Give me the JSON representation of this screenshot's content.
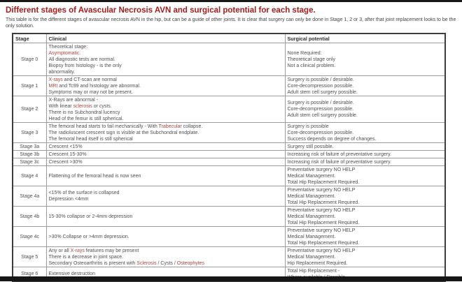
{
  "page": {
    "title": "Different stages of Avascular Necrosis AVN and surgical potential for each stage.",
    "subtitle": "This table is for the different stages of avascular necrosis AVN in the hip, but can be a guide of other joints. It is clear that surgery can only be done in Stage 1, 2 or 3, after that joint replacement looks to be the only solution."
  },
  "colors": {
    "title_red": "#a31d1d",
    "highlight_red": "#a8453f",
    "body_text_gray": "#4f4f4f",
    "outer_border": "#3c3c3c",
    "inner_border": "#9c9c9c",
    "edge_bar_black": "#161616"
  },
  "table": {
    "headers": [
      "Stage",
      "Clinical",
      "Surgical potential"
    ],
    "rows": [
      {
        "stage": "Stage 0",
        "clinical": [
          "Theoretical stage:",
          [
            {
              "t": "Asymptomatic.",
              "red": true
            }
          ],
          "All diagnostic tests are normal.",
          "Biopsy from histology - is the only",
          "abnormality."
        ],
        "surgical": [
          "None Required:",
          "Theoretical stage only",
          "Not a clinical problem."
        ]
      },
      {
        "stage": "Stage 1",
        "clinical": [
          [
            {
              "t": "X-rays",
              "red": true
            },
            {
              "t": " and CT-scan are normal"
            }
          ],
          [
            {
              "t": "MRI",
              "red": true
            },
            {
              "t": " and Tc99 and histology are abnormal."
            }
          ],
          "Symptoms may or may not be present."
        ],
        "surgical": [
          "Surgery is possible / desirable.",
          "Core-decompression possible.",
          "Adult stem cell surgery possible."
        ]
      },
      {
        "stage": "Stage 2",
        "clinical": [
          "X-Rays are abnormal -",
          [
            {
              "t": "With linear "
            },
            {
              "t": "sclerosis",
              "red": true
            },
            {
              "t": " or cysts."
            }
          ],
          "There is no Subchondral lucency",
          "Head of the femur is still spherical."
        ],
        "surgical": [
          "Surgery is possible / desirable.",
          "Core-decompression possible.",
          "Adult stem cell surgery possible."
        ]
      },
      {
        "stage": "Stage 3",
        "clinical": [
          [
            {
              "t": "The femoral head starts to fail mechanically - With "
            },
            {
              "t": "Trabecular",
              "red": true
            },
            {
              "t": " collapse."
            }
          ],
          "The radioluscent crescent sign is visible at the Subchondral endplate.",
          "The femoral head itself is still spherical"
        ],
        "surgical": [
          "Surgery is possible",
          "Core-decompression possible.",
          "Success depends on degree of changes."
        ]
      },
      {
        "stage": "Stage 3a",
        "clinical": [
          "Crescent <15%"
        ],
        "surgical": [
          "Surgery still possible."
        ]
      },
      {
        "stage": "Stage 3b",
        "clinical": [
          "Crescent 15-30%"
        ],
        "surgical": [
          "Increasing risk of failure of preventative surgery."
        ]
      },
      {
        "stage": "Stage 3c",
        "clinical": [
          "Crescent >30%"
        ],
        "surgical": [
          "Increasing risk of failure of preventative surgery."
        ]
      },
      {
        "stage": "Stage 4",
        "clinical": [
          "Flattening of the femoral head is now seen"
        ],
        "surgical": [
          "Preventative surgery NO HELP",
          "Medical Management.",
          "Total Hip Replacement Required."
        ]
      },
      {
        "stage": "Stage 4a",
        "clinical": [
          "<15% of the surface is collapsed",
          "Depression <4mm"
        ],
        "surgical": [
          "Preventative surgery NO HELP",
          "Medical Management.",
          "Total Hip Replacement Required."
        ]
      },
      {
        "stage": "Stage 4b",
        "clinical": [
          "15-30% collapse or 2-4mm depression"
        ],
        "surgical": [
          "Preventative surgery NO HELP",
          "Medical Management.",
          "Total Hip Replacement Required."
        ]
      },
      {
        "stage": "Stage 4c",
        "clinical": [
          ">30% Collapse or >4mm depression."
        ],
        "surgical": [
          "Preventative surgery NO HELP",
          "Medical Management.",
          "Total Hip Replacement Required."
        ]
      },
      {
        "stage": "Stage 5",
        "clinical": [
          [
            {
              "t": "Any or all "
            },
            {
              "t": "X-rays",
              "red": true
            },
            {
              "t": " features may be present"
            }
          ],
          "There is a decrease in joint space.",
          [
            {
              "t": "Secondary Osteoarthritis is present with "
            },
            {
              "t": "Sclerosis",
              "red": true
            },
            {
              "t": " / Cysts / "
            },
            {
              "t": "Osteophytes",
              "red": true
            }
          ]
        ],
        "surgical": [
          "Preventative surgery NO HELP",
          "Medical Management.",
          "Hip Replacement Required."
        ]
      },
      {
        "stage": "Stage 6",
        "clinical": [
          "Extensive destruction"
        ],
        "surgical": [
          "Total Hip Replacement -",
          "Where available / Possible."
        ]
      }
    ]
  }
}
